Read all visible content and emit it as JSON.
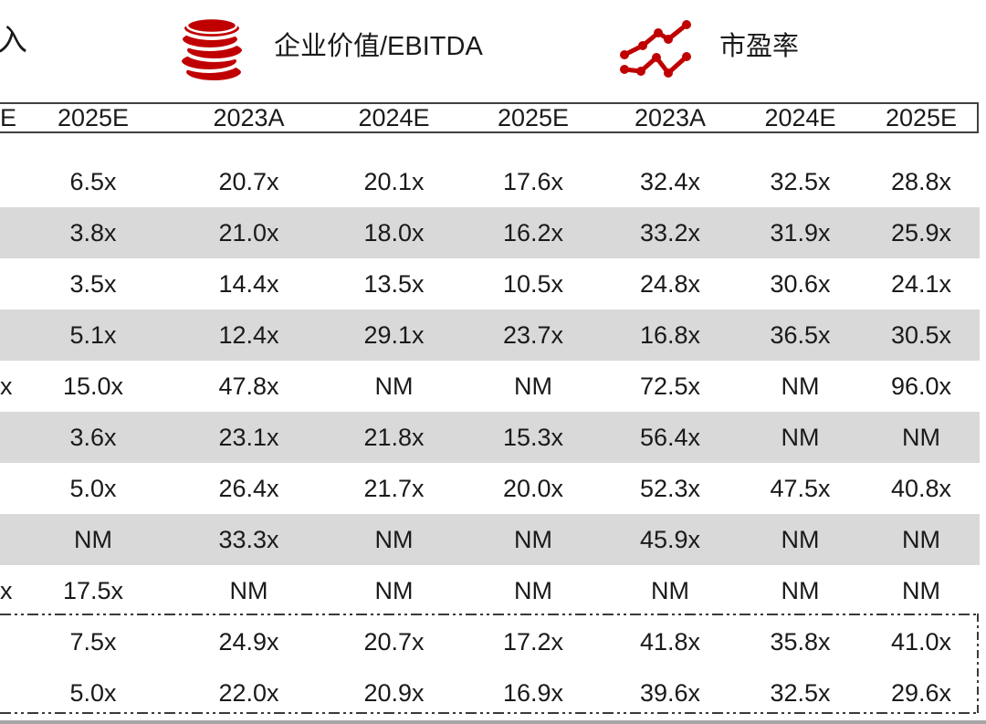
{
  "legend": {
    "partial_left_label": "入",
    "items": [
      {
        "icon": "coins-icon",
        "label": "企业价值/EBITDA"
      },
      {
        "icon": "line-chart-icon",
        "label": "市盈率"
      }
    ]
  },
  "table": {
    "header": {
      "partial_first_column": "E",
      "columns": [
        "2025E",
        "2023A",
        "2024E",
        "2025E",
        "2023A",
        "2024E",
        "2025E"
      ]
    },
    "rows": [
      {
        "partial": "",
        "shaded": false,
        "boxed": false,
        "values": [
          "6.5x",
          "20.7x",
          "20.1x",
          "17.6x",
          "32.4x",
          "32.5x",
          "28.8x"
        ]
      },
      {
        "partial": "",
        "shaded": true,
        "boxed": false,
        "values": [
          "3.8x",
          "21.0x",
          "18.0x",
          "16.2x",
          "33.2x",
          "31.9x",
          "25.9x"
        ]
      },
      {
        "partial": "",
        "shaded": false,
        "boxed": false,
        "values": [
          "3.5x",
          "14.4x",
          "13.5x",
          "10.5x",
          "24.8x",
          "30.6x",
          "24.1x"
        ]
      },
      {
        "partial": "",
        "shaded": true,
        "boxed": false,
        "values": [
          "5.1x",
          "12.4x",
          "29.1x",
          "23.7x",
          "16.8x",
          "36.5x",
          "30.5x"
        ]
      },
      {
        "partial": "x",
        "shaded": false,
        "boxed": false,
        "values": [
          "15.0x",
          "47.8x",
          "NM",
          "NM",
          "72.5x",
          "NM",
          "96.0x"
        ]
      },
      {
        "partial": "",
        "shaded": true,
        "boxed": false,
        "values": [
          "3.6x",
          "23.1x",
          "21.8x",
          "15.3x",
          "56.4x",
          "NM",
          "NM"
        ]
      },
      {
        "partial": "",
        "shaded": false,
        "boxed": false,
        "values": [
          "5.0x",
          "26.4x",
          "21.7x",
          "20.0x",
          "52.3x",
          "47.5x",
          "40.8x"
        ]
      },
      {
        "partial": "",
        "shaded": true,
        "boxed": false,
        "values": [
          "NM",
          "33.3x",
          "NM",
          "NM",
          "45.9x",
          "NM",
          "NM"
        ]
      },
      {
        "partial": "x",
        "shaded": false,
        "boxed": false,
        "values": [
          "17.5x",
          "NM",
          "NM",
          "NM",
          "NM",
          "NM",
          "NM"
        ]
      },
      {
        "partial": "",
        "shaded": false,
        "boxed": true,
        "values": [
          "7.5x",
          "24.9x",
          "20.7x",
          "17.2x",
          "41.8x",
          "35.8x",
          "41.0x"
        ]
      },
      {
        "partial": "",
        "shaded": false,
        "boxed": true,
        "values": [
          "5.0x",
          "22.0x",
          "20.9x",
          "16.9x",
          "39.6x",
          "32.5x",
          "29.6x"
        ]
      }
    ]
  },
  "colors": {
    "accent_red": "#c00000",
    "shaded_row_bg": "#d9d9d9",
    "table_border": "#404040",
    "dashed_box_border": "#3a3a3a",
    "bottom_bar": "#a6a6a6",
    "text": "#1a1a1a"
  }
}
